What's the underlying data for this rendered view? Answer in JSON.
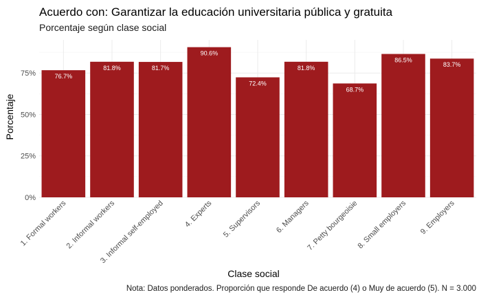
{
  "chart_data": {
    "type": "bar",
    "title": "Acuerdo con: Garantizar la educación universitaria pública y gratuita",
    "subtitle": "Porcentaje según clase social",
    "xlabel": "Clase social",
    "ylabel": "Porcentaje",
    "caption": "Nota: Datos ponderados. Proporción que responde De acuerdo (4) o Muy de acuerdo (5). N = 3.000",
    "categories": [
      "1. Formal workers",
      "2. Informal workers",
      "3. Informal self-employed",
      "4. Experts",
      "5. Supervisors",
      "6. Managers",
      "7. Petty bourgeoisie",
      "8. Small employers",
      "9. Employers"
    ],
    "values": [
      76.7,
      81.8,
      81.7,
      90.6,
      72.4,
      81.8,
      68.7,
      86.5,
      83.7
    ],
    "data_labels": [
      "76.7%",
      "81.8%",
      "81.7%",
      "90.6%",
      "72.4%",
      "81.8%",
      "68.7%",
      "86.5%",
      "83.7%"
    ],
    "yticks": [
      0,
      25,
      50,
      75
    ],
    "ytick_labels": [
      "0%",
      "25%",
      "50%",
      "75%"
    ],
    "ylim": [
      0,
      95
    ],
    "bar_color": "#9e1b1e",
    "grid": true,
    "legend": "none"
  }
}
